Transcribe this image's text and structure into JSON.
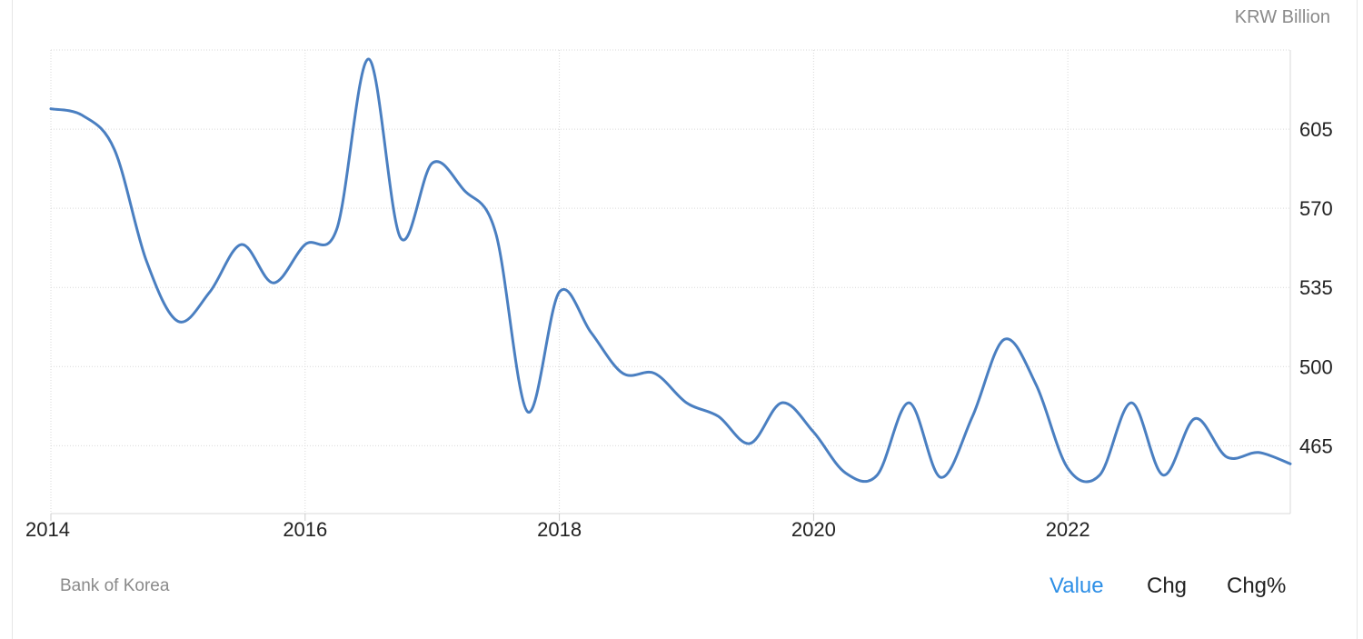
{
  "unit_label": "KRW Billion",
  "source": "Bank of Korea",
  "tabs": [
    {
      "label": "Value",
      "active": true
    },
    {
      "label": "Chg",
      "active": false
    },
    {
      "label": "Chg%",
      "active": false
    }
  ],
  "colors": {
    "line": "#4a7fc1",
    "active_tab": "#2d8fe6",
    "grid": "#d9d9d9"
  },
  "chart_data": {
    "type": "line",
    "title": "",
    "xlabel": "",
    "ylabel": "KRW Billion",
    "x_ticks": [
      "2014",
      "2016",
      "2018",
      "2020",
      "2022"
    ],
    "y_ticks": [
      465,
      500,
      535,
      570,
      605
    ],
    "ylim": [
      435,
      640
    ],
    "xlim": [
      2014.0,
      2023.75
    ],
    "grid": true,
    "series": [
      {
        "x": [
          2014.0,
          2014.25,
          2014.5,
          2014.75,
          2015.0,
          2015.25,
          2015.5,
          2015.75,
          2016.0,
          2016.25,
          2016.5,
          2016.75,
          2017.0,
          2017.25,
          2017.5,
          2017.75,
          2018.0,
          2018.25,
          2018.5,
          2018.75,
          2019.0,
          2019.25,
          2019.5,
          2019.75,
          2020.0,
          2020.25,
          2020.5,
          2020.75,
          2021.0,
          2021.25,
          2021.5,
          2021.75,
          2022.0,
          2022.25,
          2022.5,
          2022.75,
          2023.0,
          2023.25,
          2023.5,
          2023.75
        ],
        "values": [
          614,
          611,
          596,
          547,
          520,
          533,
          554,
          537,
          554,
          561,
          636,
          557,
          590,
          578,
          559,
          480,
          533,
          515,
          497,
          497,
          484,
          478,
          466,
          484,
          471,
          453,
          452,
          484,
          451,
          478,
          512,
          492,
          455,
          452,
          484,
          452,
          477,
          460,
          462,
          457
        ]
      }
    ]
  }
}
